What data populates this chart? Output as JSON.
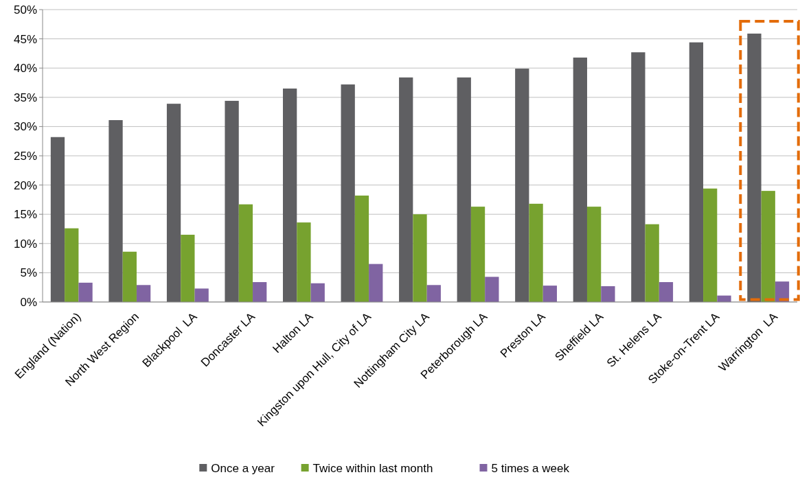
{
  "chart_data": {
    "type": "bar",
    "categories": [
      "England (Nation)",
      "North West Region",
      "Blackpool  LA",
      "Doncaster LA",
      "Halton LA",
      "Kingston upon Hull, City of LA",
      "Nottingham City LA",
      "Peterborough LA",
      "Preston LA",
      "Sheffield LA",
      "St. Helens LA",
      "Stoke-on-Trent LA",
      "Warrington  LA"
    ],
    "series": [
      {
        "name": "Once a year",
        "color": "#5f5f62",
        "values": [
          28.2,
          31.1,
          33.9,
          34.4,
          36.5,
          37.2,
          38.4,
          38.4,
          39.9,
          41.8,
          42.7,
          44.4,
          45.9
        ]
      },
      {
        "name": "Twice within last month",
        "color": "#77a22f",
        "values": [
          12.6,
          8.6,
          11.5,
          16.7,
          13.6,
          18.2,
          15.0,
          16.3,
          16.8,
          16.3,
          13.3,
          19.4,
          19.0
        ]
      },
      {
        "name": "5 times a week",
        "color": "#8064a2",
        "values": [
          3.3,
          2.9,
          2.3,
          3.4,
          3.2,
          6.5,
          2.9,
          4.3,
          2.8,
          2.7,
          3.4,
          1.1,
          3.5
        ]
      }
    ],
    "ylim": [
      0,
      50
    ],
    "yticks": [
      {
        "value": 0,
        "label": "0%"
      },
      {
        "value": 5,
        "label": "5%"
      },
      {
        "value": 10,
        "label": "10%"
      },
      {
        "value": 15,
        "label": "15%"
      },
      {
        "value": 20,
        "label": "20%"
      },
      {
        "value": 25,
        "label": "25%"
      },
      {
        "value": 30,
        "label": "30%"
      },
      {
        "value": 35,
        "label": "35%"
      },
      {
        "value": 40,
        "label": "40%"
      },
      {
        "value": 45,
        "label": "45%"
      },
      {
        "value": 50,
        "label": "50%"
      }
    ],
    "grid": "y",
    "legend": "bottom"
  }
}
